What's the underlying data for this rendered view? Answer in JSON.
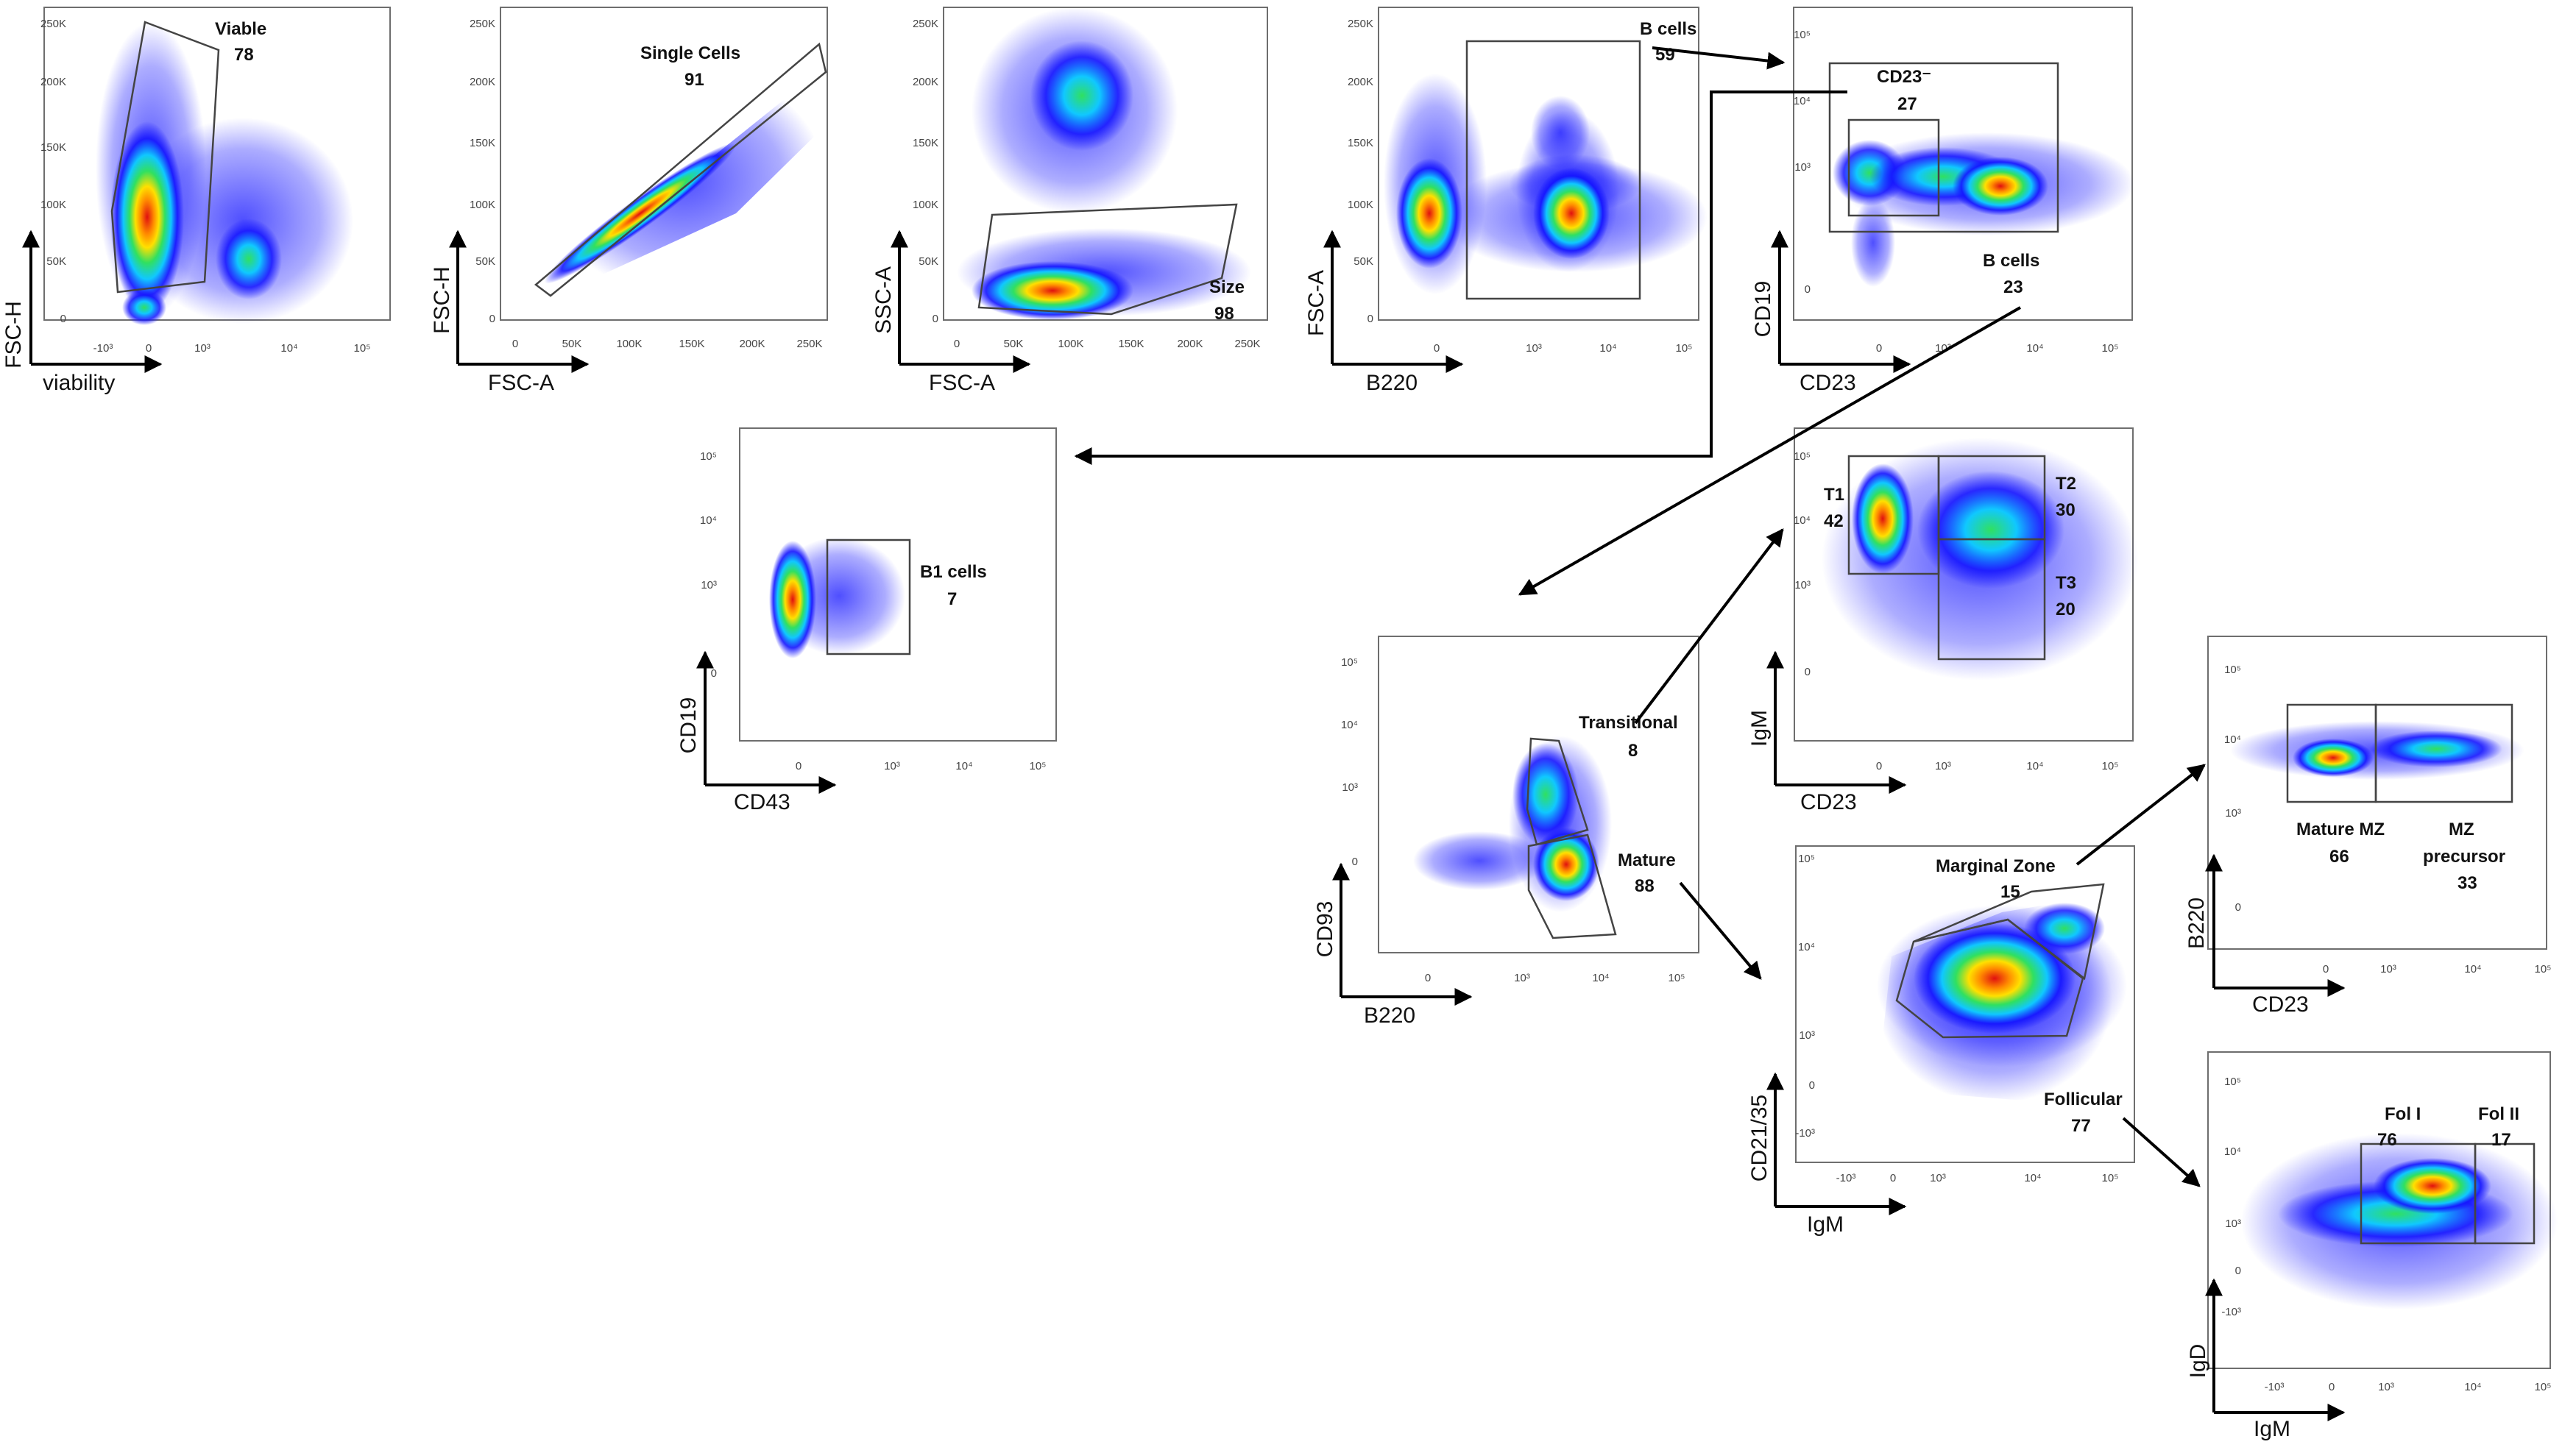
{
  "axis_labels": {
    "viability": "viability",
    "fsc_h": "FSC-H",
    "fsc_a": "FSC-A",
    "ssc_a": "SSC-A",
    "b220": "B220",
    "cd19": "CD19",
    "cd23": "CD23",
    "cd43": "CD43",
    "cd93": "CD93",
    "igm": "IgM",
    "cd21_35": "CD21/35",
    "igd": "IgD"
  },
  "tick_sets": {
    "linear_a": [
      "0",
      "50K",
      "100K",
      "150K",
      "200K",
      "250K"
    ],
    "linear_b": [
      "0",
      "50K",
      "100K",
      "150K",
      "200K",
      "250K"
    ],
    "log_neg": [
      "-10³",
      "0",
      "10³",
      "10⁴",
      "10⁵"
    ],
    "log_pos": [
      "0",
      "10³",
      "10⁴",
      "10⁵"
    ]
  },
  "gates": {
    "viable": {
      "name": "Viable",
      "pct": "78"
    },
    "single_cells": {
      "name": "Single Cells",
      "pct": "91"
    },
    "size": {
      "name": "Size",
      "pct": "98"
    },
    "b_cells_1": {
      "name": "B cells",
      "pct": "59"
    },
    "cd23_neg": {
      "name": "CD23⁻",
      "pct": "27"
    },
    "b_cells_2": {
      "name": "B cells",
      "pct": "23"
    },
    "b1_cells": {
      "name": "B1 cells",
      "pct": "7"
    },
    "transitional": {
      "name": "Transitional",
      "pct": "8"
    },
    "mature": {
      "name": "Mature",
      "pct": "88"
    },
    "t1": {
      "name": "T1",
      "pct": "42"
    },
    "t2": {
      "name": "T2",
      "pct": "30"
    },
    "t3": {
      "name": "T3",
      "pct": "20"
    },
    "marginal_zone": {
      "name": "Marginal Zone",
      "pct": "15"
    },
    "follicular": {
      "name": "Follicular",
      "pct": "77"
    },
    "mature_mz": {
      "name": "Mature MZ",
      "pct": "66"
    },
    "mz_precursor": {
      "name": "MZ",
      "name2": "precursor",
      "pct": "33"
    },
    "fol_1": {
      "name": "Fol I",
      "pct": "76"
    },
    "fol_2": {
      "name": "Fol II",
      "pct": "17"
    }
  },
  "colors": {
    "frame": "#6e6e6e",
    "gate": "#444444",
    "arrow": "#000000",
    "density_low": "#1414ff",
    "density_mid": "#10c8ff",
    "density_hi": "#ffe000",
    "density_peak": "#e01010"
  }
}
